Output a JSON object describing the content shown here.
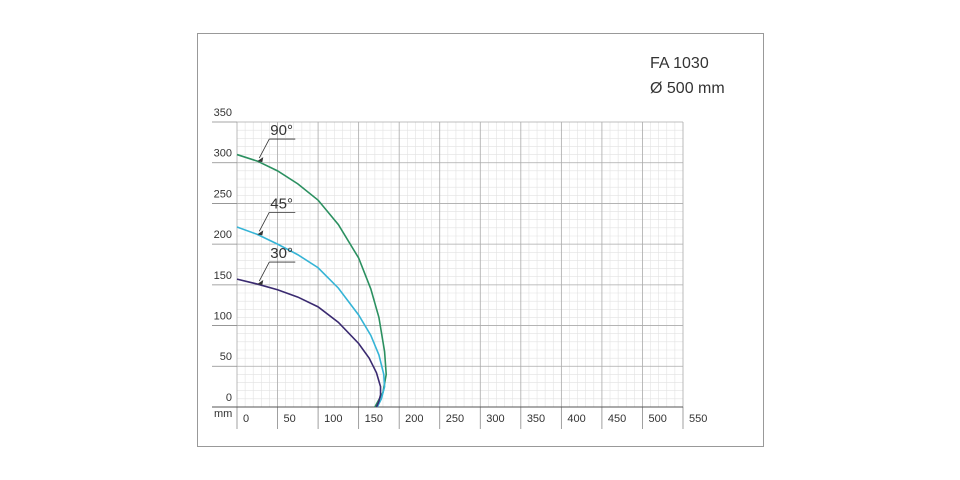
{
  "chart_data": {
    "type": "line",
    "title": "FA 1030",
    "subtitle": "Ø 500 mm",
    "x_label": "mm",
    "xlim": [
      0,
      550
    ],
    "xticks": [
      0,
      50,
      100,
      150,
      200,
      250,
      300,
      350,
      400,
      450,
      500,
      550
    ],
    "ylim": [
      0,
      350
    ],
    "yticks": [
      0,
      50,
      100,
      150,
      200,
      250,
      300,
      350
    ],
    "grid": true,
    "series": [
      {
        "name": "90°",
        "color": "#2b9060",
        "x": [
          0,
          25,
          50,
          75,
          100,
          125,
          150,
          165,
          175,
          182,
          184,
          180,
          170
        ],
        "values": [
          310,
          302,
          290,
          274,
          254,
          224,
          183,
          145,
          110,
          68,
          40,
          18,
          0
        ]
      },
      {
        "name": "45°",
        "color": "#35b4d6",
        "x": [
          0,
          25,
          50,
          75,
          100,
          125,
          150,
          165,
          175,
          181,
          182,
          178,
          173
        ],
        "values": [
          221,
          212,
          200,
          187,
          171,
          146,
          113,
          88,
          64,
          40,
          25,
          10,
          0
        ]
      },
      {
        "name": "30°",
        "color": "#3a2a70",
        "x": [
          0,
          25,
          50,
          75,
          100,
          125,
          150,
          163,
          172,
          177,
          177,
          175,
          172
        ],
        "values": [
          157,
          151,
          144,
          135,
          123,
          104,
          78,
          60,
          42,
          25,
          15,
          7,
          0
        ]
      }
    ]
  }
}
